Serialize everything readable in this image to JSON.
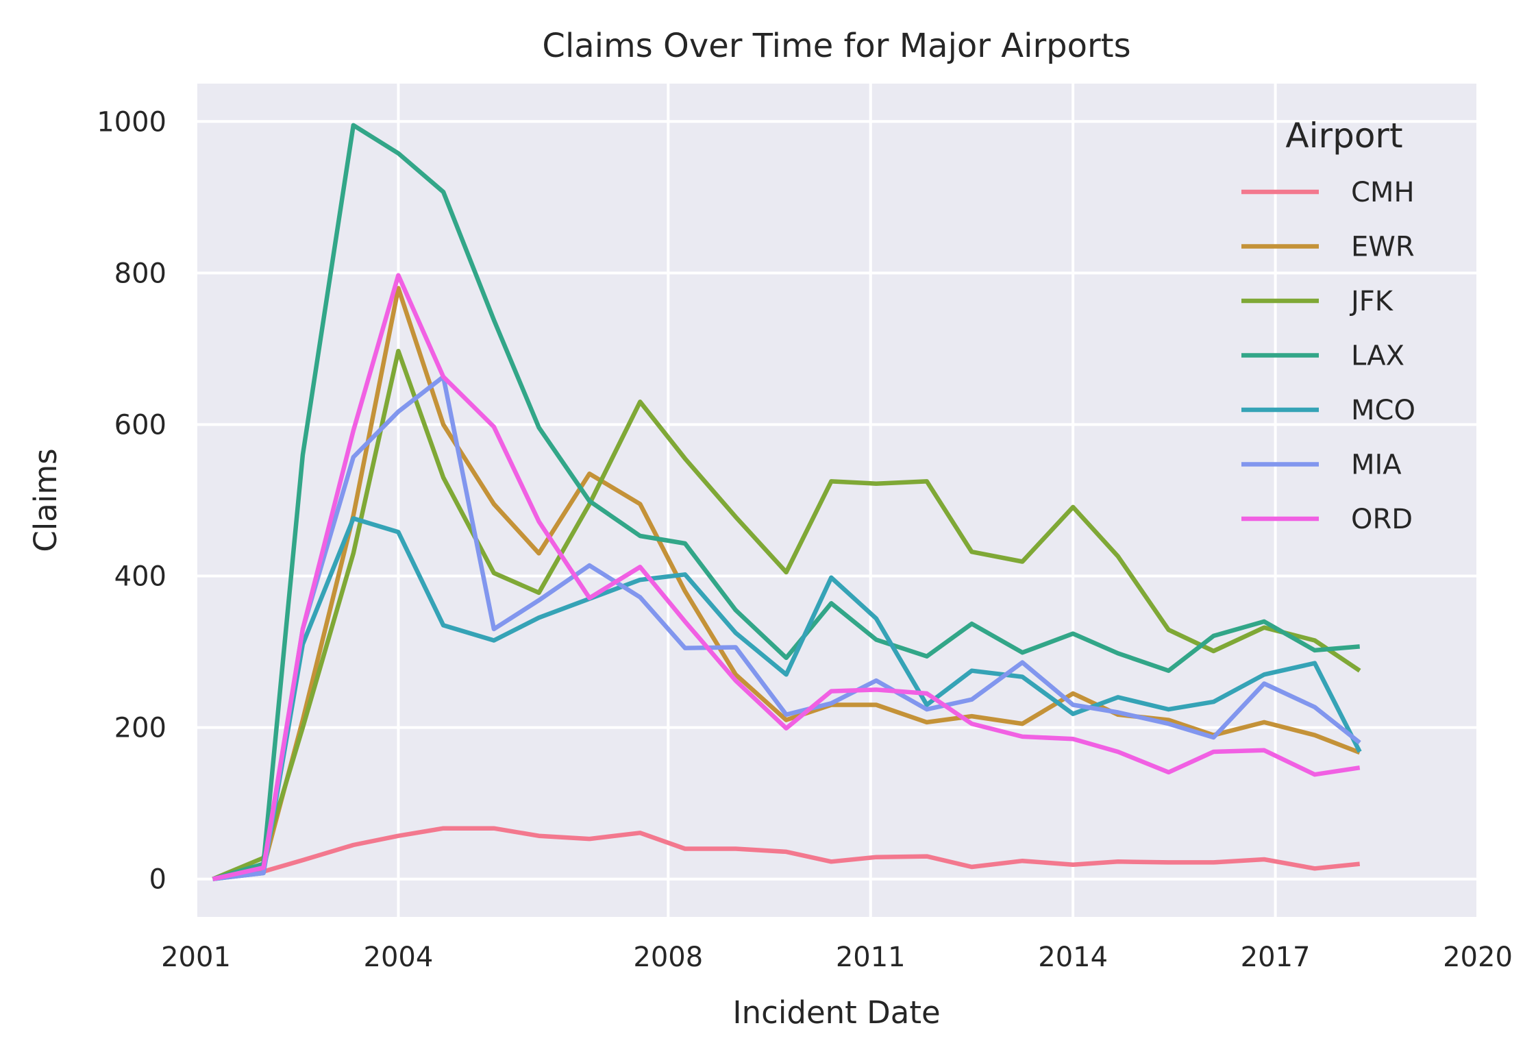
{
  "chart_data": {
    "type": "line",
    "title": "Claims Over Time for Major Airports",
    "xlabel": "Incident Date",
    "ylabel": "Claims",
    "x_ticks": [
      "2001",
      "2004",
      "2008",
      "2011",
      "2014",
      "2017",
      "2020"
    ],
    "xlim": [
      "2001-01",
      "2020-01"
    ],
    "y_ticks": [
      "0",
      "200",
      "400",
      "600",
      "800",
      "1000"
    ],
    "ylim": [
      -50,
      1050
    ],
    "grid": true,
    "legend": {
      "title": "Airport",
      "placement": "top-right"
    },
    "x": [
      "2001-04",
      "2002-01",
      "2002-08",
      "2003-05",
      "2004-01",
      "2004-09",
      "2005-06",
      "2006-02",
      "2006-11",
      "2007-08",
      "2008-04",
      "2009-01",
      "2009-10",
      "2010-06",
      "2011-02",
      "2011-11",
      "2012-07",
      "2013-04",
      "2014-01",
      "2014-09",
      "2015-06",
      "2016-02",
      "2016-11",
      "2017-08",
      "2018-04"
    ],
    "series": [
      {
        "name": "CMH",
        "color": "#f3788e",
        "values": [
          0,
          10,
          25,
          45,
          57,
          67,
          67,
          57,
          53,
          61,
          40,
          40,
          36,
          23,
          29,
          30,
          16,
          24,
          19,
          23,
          22,
          22,
          26,
          14,
          20
        ]
      },
      {
        "name": "EWR",
        "color": "#c49238",
        "values": [
          0,
          15,
          210,
          480,
          780,
          600,
          495,
          430,
          535,
          495,
          380,
          270,
          210,
          230,
          230,
          207,
          215,
          205,
          245,
          217,
          210,
          190,
          207,
          190,
          167
        ]
      },
      {
        "name": "JFK",
        "color": "#7fa836",
        "values": [
          0,
          28,
          200,
          430,
          697,
          530,
          404,
          378,
          495,
          630,
          555,
          478,
          405,
          525,
          522,
          525,
          432,
          419,
          491,
          426,
          329,
          301,
          332,
          315,
          275
        ]
      },
      {
        "name": "LAX",
        "color": "#32a688",
        "values": [
          0,
          20,
          560,
          995,
          958,
          907,
          738,
          596,
          499,
          453,
          443,
          355,
          292,
          364,
          316,
          294,
          337,
          299,
          324,
          298,
          275,
          321,
          340,
          302,
          307
        ]
      },
      {
        "name": "MCO",
        "color": "#35a3b6",
        "values": [
          0,
          8,
          310,
          476,
          458,
          335,
          315,
          345,
          370,
          395,
          402,
          325,
          270,
          398,
          344,
          230,
          275,
          267,
          218,
          240,
          224,
          234,
          270,
          285,
          168
        ]
      },
      {
        "name": "MIA",
        "color": "#8196ee",
        "values": [
          0,
          8,
          330,
          557,
          617,
          663,
          330,
          368,
          414,
          372,
          305,
          306,
          217,
          232,
          262,
          224,
          237,
          286,
          230,
          220,
          205,
          187,
          258,
          227,
          180
        ]
      },
      {
        "name": "ORD",
        "color": "#f160e3",
        "values": [
          0,
          15,
          330,
          592,
          797,
          663,
          597,
          472,
          371,
          412,
          340,
          262,
          199,
          248,
          250,
          245,
          205,
          188,
          185,
          168,
          141,
          168,
          170,
          138,
          147
        ]
      }
    ]
  }
}
